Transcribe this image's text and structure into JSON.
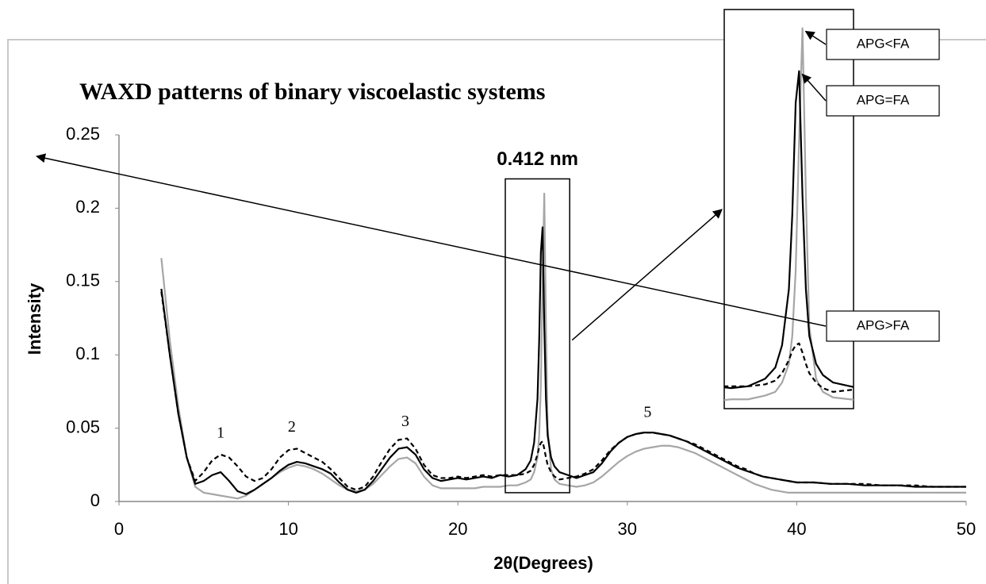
{
  "chart_data": {
    "type": "line",
    "title": "WAXD patterns of binary viscoelastic systems",
    "x_label": "2θ(Degrees)",
    "y_label": "Intensity",
    "x": [
      2.5,
      3,
      3.5,
      4,
      4.5,
      5,
      5.5,
      6,
      6.5,
      7,
      7.5,
      8,
      8.5,
      9,
      9.5,
      10,
      10.5,
      11,
      11.5,
      12,
      12.5,
      13,
      13.5,
      14,
      14.5,
      15,
      15.5,
      16,
      16.5,
      17,
      17.5,
      18,
      18.5,
      19,
      19.5,
      20,
      20.5,
      21,
      21.5,
      22,
      22.5,
      23,
      23.5,
      24,
      24.3,
      24.5,
      24.7,
      24.8,
      24.9,
      25,
      25.1,
      25.2,
      25.3,
      25.5,
      25.7,
      26,
      26.5,
      27,
      27.5,
      28,
      28.5,
      29,
      29.5,
      30,
      30.5,
      31,
      31.5,
      32,
      32.5,
      33,
      33.5,
      34,
      34.5,
      35,
      35.5,
      36,
      36.5,
      37,
      37.5,
      38,
      38.5,
      39,
      39.5,
      40,
      41,
      42,
      43,
      44,
      45,
      46,
      47,
      48,
      49,
      50
    ],
    "series": [
      {
        "name": "APG<FA",
        "color": "#a6a6a6",
        "style": "solid",
        "values": [
          0.166,
          0.11,
          0.065,
          0.03,
          0.01,
          0.006,
          0.005,
          0.004,
          0.003,
          0.002,
          0.004,
          0.008,
          0.012,
          0.016,
          0.02,
          0.023,
          0.025,
          0.024,
          0.022,
          0.019,
          0.015,
          0.011,
          0.008,
          0.007,
          0.008,
          0.012,
          0.018,
          0.024,
          0.029,
          0.03,
          0.026,
          0.017,
          0.011,
          0.009,
          0.009,
          0.009,
          0.009,
          0.009,
          0.01,
          0.01,
          0.01,
          0.011,
          0.011,
          0.013,
          0.015,
          0.02,
          0.03,
          0.045,
          0.08,
          0.15,
          0.21,
          0.12,
          0.05,
          0.022,
          0.015,
          0.012,
          0.011,
          0.01,
          0.011,
          0.013,
          0.017,
          0.022,
          0.027,
          0.031,
          0.034,
          0.036,
          0.037,
          0.038,
          0.038,
          0.037,
          0.035,
          0.033,
          0.03,
          0.027,
          0.024,
          0.021,
          0.018,
          0.015,
          0.012,
          0.01,
          0.008,
          0.007,
          0.006,
          0.006,
          0.006,
          0.006,
          0.006,
          0.006,
          0.006,
          0.006,
          0.006,
          0.006,
          0.006,
          0.006
        ]
      },
      {
        "name": "APG=FA",
        "color": "#000000",
        "style": "solid",
        "values": [
          0.145,
          0.1,
          0.06,
          0.03,
          0.012,
          0.014,
          0.018,
          0.02,
          0.014,
          0.007,
          0.005,
          0.008,
          0.012,
          0.016,
          0.021,
          0.025,
          0.027,
          0.026,
          0.024,
          0.022,
          0.019,
          0.013,
          0.008,
          0.006,
          0.008,
          0.014,
          0.022,
          0.03,
          0.036,
          0.037,
          0.032,
          0.022,
          0.016,
          0.014,
          0.015,
          0.016,
          0.015,
          0.016,
          0.017,
          0.016,
          0.018,
          0.017,
          0.018,
          0.022,
          0.028,
          0.04,
          0.07,
          0.11,
          0.17,
          0.187,
          0.12,
          0.07,
          0.045,
          0.03,
          0.024,
          0.02,
          0.018,
          0.016,
          0.018,
          0.02,
          0.026,
          0.034,
          0.04,
          0.044,
          0.046,
          0.047,
          0.047,
          0.046,
          0.045,
          0.043,
          0.041,
          0.038,
          0.035,
          0.032,
          0.029,
          0.026,
          0.023,
          0.021,
          0.019,
          0.017,
          0.016,
          0.015,
          0.014,
          0.013,
          0.013,
          0.012,
          0.012,
          0.011,
          0.011,
          0.011,
          0.01,
          0.01,
          0.01,
          0.01
        ]
      },
      {
        "name": "APG>FA",
        "color": "#000000",
        "style": "dashed",
        "values": [
          0.143,
          0.1,
          0.06,
          0.03,
          0.014,
          0.02,
          0.028,
          0.032,
          0.03,
          0.024,
          0.017,
          0.014,
          0.016,
          0.022,
          0.03,
          0.035,
          0.036,
          0.033,
          0.03,
          0.027,
          0.022,
          0.016,
          0.01,
          0.008,
          0.01,
          0.017,
          0.027,
          0.036,
          0.042,
          0.043,
          0.036,
          0.025,
          0.018,
          0.016,
          0.016,
          0.017,
          0.016,
          0.017,
          0.018,
          0.017,
          0.018,
          0.018,
          0.018,
          0.019,
          0.021,
          0.025,
          0.032,
          0.037,
          0.04,
          0.041,
          0.036,
          0.03,
          0.025,
          0.02,
          0.017,
          0.015,
          0.016,
          0.017,
          0.019,
          0.022,
          0.028,
          0.035,
          0.04,
          0.044,
          0.046,
          0.047,
          0.047,
          0.046,
          0.045,
          0.043,
          0.041,
          0.039,
          0.036,
          0.033,
          0.03,
          0.027,
          0.024,
          0.022,
          0.019,
          0.017,
          0.016,
          0.015,
          0.014,
          0.013,
          0.013,
          0.012,
          0.012,
          0.012,
          0.011,
          0.011,
          0.011,
          0.01,
          0.01,
          0.01
        ]
      }
    ],
    "xlim": [
      0,
      50
    ],
    "xticks": [
      0,
      10,
      20,
      30,
      40,
      50
    ],
    "ylim": [
      0,
      0.25
    ],
    "yticks": [
      0,
      0.05,
      0.1,
      0.15,
      0.2,
      0.25
    ],
    "grid": false,
    "zoom_box": {
      "label": "0.412 nm",
      "xlim": [
        22.8,
        26.6
      ],
      "ylim": [
        0.006,
        0.22
      ]
    },
    "annotations": [
      {
        "text": "1",
        "x": 6,
        "y": 0.046
      },
      {
        "text": "2",
        "x": 10.2,
        "y": 0.05
      },
      {
        "text": "3",
        "x": 16.9,
        "y": 0.054
      },
      {
        "text": "5",
        "x": 31.2,
        "y": 0.06
      }
    ]
  }
}
